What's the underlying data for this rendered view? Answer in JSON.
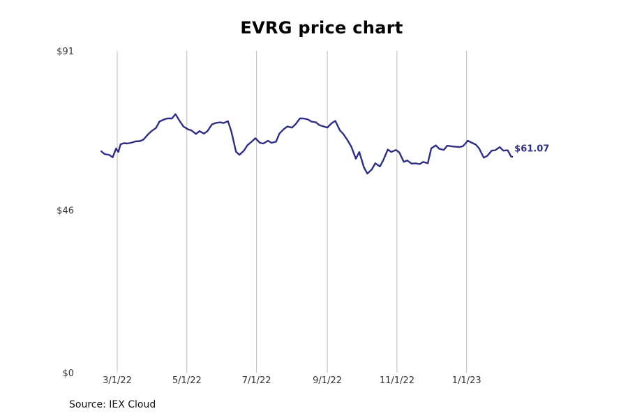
{
  "chart_data": {
    "type": "line",
    "title": "EVRG price chart",
    "source": "Source: IEX Cloud",
    "xlabel": "",
    "ylabel": "",
    "ylim": [
      0,
      91
    ],
    "yticks": [
      {
        "value": 0,
        "label": "$0"
      },
      {
        "value": 46,
        "label": "$46"
      },
      {
        "value": 91,
        "label": "$91"
      }
    ],
    "xlim": [
      "2022-02-07",
      "2023-03-10"
    ],
    "xticks": [
      {
        "date": "2022-03-01",
        "label": "3/1/22"
      },
      {
        "date": "2022-05-01",
        "label": "5/1/22"
      },
      {
        "date": "2022-07-01",
        "label": "7/1/22"
      },
      {
        "date": "2022-09-01",
        "label": "9/1/22"
      },
      {
        "date": "2022-11-01",
        "label": "11/1/22"
      },
      {
        "date": "2023-01-01",
        "label": "1/1/23"
      }
    ],
    "grid": "vertical",
    "line_color": "#2e2e82",
    "grid_color": "#bbbbbb",
    "series": [
      {
        "last_value_label": "$61.07",
        "points": [
          [
            "2022-02-15",
            62.6
          ],
          [
            "2022-02-18",
            61.8
          ],
          [
            "2022-02-22",
            61.6
          ],
          [
            "2022-02-25",
            60.9
          ],
          [
            "2022-02-28",
            63.4
          ],
          [
            "2022-03-02",
            62.4
          ],
          [
            "2022-03-04",
            64.6
          ],
          [
            "2022-03-07",
            64.9
          ],
          [
            "2022-03-10",
            64.8
          ],
          [
            "2022-03-14",
            65.1
          ],
          [
            "2022-03-17",
            65.4
          ],
          [
            "2022-03-21",
            65.5
          ],
          [
            "2022-03-24",
            65.9
          ],
          [
            "2022-03-28",
            67.4
          ],
          [
            "2022-03-31",
            68.3
          ],
          [
            "2022-04-04",
            69.2
          ],
          [
            "2022-04-07",
            71.0
          ],
          [
            "2022-04-11",
            71.6
          ],
          [
            "2022-04-14",
            71.9
          ],
          [
            "2022-04-18",
            71.9
          ],
          [
            "2022-04-21",
            73.1
          ],
          [
            "2022-04-25",
            71.0
          ],
          [
            "2022-04-28",
            69.6
          ],
          [
            "2022-05-02",
            68.8
          ],
          [
            "2022-05-05",
            68.5
          ],
          [
            "2022-05-09",
            67.5
          ],
          [
            "2022-05-12",
            68.3
          ],
          [
            "2022-05-16",
            67.6
          ],
          [
            "2022-05-19",
            68.3
          ],
          [
            "2022-05-23",
            70.2
          ],
          [
            "2022-05-26",
            70.6
          ],
          [
            "2022-05-30",
            70.8
          ],
          [
            "2022-06-02",
            70.6
          ],
          [
            "2022-06-06",
            71.1
          ],
          [
            "2022-06-09",
            68.2
          ],
          [
            "2022-06-13",
            62.5
          ],
          [
            "2022-06-16",
            61.6
          ],
          [
            "2022-06-20",
            62.8
          ],
          [
            "2022-06-23",
            64.3
          ],
          [
            "2022-06-27",
            65.4
          ],
          [
            "2022-06-30",
            66.3
          ],
          [
            "2022-07-04",
            65.0
          ],
          [
            "2022-07-07",
            64.8
          ],
          [
            "2022-07-11",
            65.6
          ],
          [
            "2022-07-14",
            65.0
          ],
          [
            "2022-07-18",
            65.3
          ],
          [
            "2022-07-21",
            67.6
          ],
          [
            "2022-07-25",
            68.9
          ],
          [
            "2022-07-28",
            69.6
          ],
          [
            "2022-08-01",
            69.3
          ],
          [
            "2022-08-04",
            70.2
          ],
          [
            "2022-08-08",
            71.9
          ],
          [
            "2022-08-11",
            71.9
          ],
          [
            "2022-08-15",
            71.6
          ],
          [
            "2022-08-18",
            71.0
          ],
          [
            "2022-08-22",
            70.8
          ],
          [
            "2022-08-25",
            70.0
          ],
          [
            "2022-08-29",
            69.6
          ],
          [
            "2022-09-01",
            69.3
          ],
          [
            "2022-09-05",
            70.6
          ],
          [
            "2022-09-08",
            71.2
          ],
          [
            "2022-09-12",
            68.5
          ],
          [
            "2022-09-15",
            67.5
          ],
          [
            "2022-09-19",
            65.6
          ],
          [
            "2022-09-22",
            63.9
          ],
          [
            "2022-09-26",
            60.5
          ],
          [
            "2022-09-29",
            62.4
          ],
          [
            "2022-10-03",
            58.1
          ],
          [
            "2022-10-06",
            56.3
          ],
          [
            "2022-10-10",
            57.5
          ],
          [
            "2022-10-13",
            59.2
          ],
          [
            "2022-10-17",
            58.3
          ],
          [
            "2022-10-20",
            60.1
          ],
          [
            "2022-10-24",
            63.1
          ],
          [
            "2022-10-27",
            62.4
          ],
          [
            "2022-10-31",
            63.0
          ],
          [
            "2022-11-03",
            62.3
          ],
          [
            "2022-11-07",
            59.6
          ],
          [
            "2022-11-10",
            60.0
          ],
          [
            "2022-11-14",
            59.1
          ],
          [
            "2022-11-17",
            59.2
          ],
          [
            "2022-11-21",
            59.0
          ],
          [
            "2022-11-24",
            59.6
          ],
          [
            "2022-11-28",
            59.2
          ],
          [
            "2022-12-01",
            63.4
          ],
          [
            "2022-12-05",
            64.3
          ],
          [
            "2022-12-08",
            63.3
          ],
          [
            "2022-12-12",
            63.0
          ],
          [
            "2022-12-15",
            64.2
          ],
          [
            "2022-12-19",
            64.0
          ],
          [
            "2022-12-22",
            63.9
          ],
          [
            "2022-12-26",
            63.8
          ],
          [
            "2022-12-29",
            64.1
          ],
          [
            "2023-01-02",
            65.6
          ],
          [
            "2023-01-05",
            65.1
          ],
          [
            "2023-01-09",
            64.5
          ],
          [
            "2023-01-12",
            63.4
          ],
          [
            "2023-01-16",
            60.8
          ],
          [
            "2023-01-19",
            61.3
          ],
          [
            "2023-01-23",
            62.8
          ],
          [
            "2023-01-26",
            62.9
          ],
          [
            "2023-01-30",
            63.8
          ],
          [
            "2023-02-02",
            62.8
          ],
          [
            "2023-02-06",
            62.9
          ],
          [
            "2023-02-09",
            61.1
          ],
          [
            "2023-02-10",
            61.07
          ]
        ]
      }
    ]
  }
}
